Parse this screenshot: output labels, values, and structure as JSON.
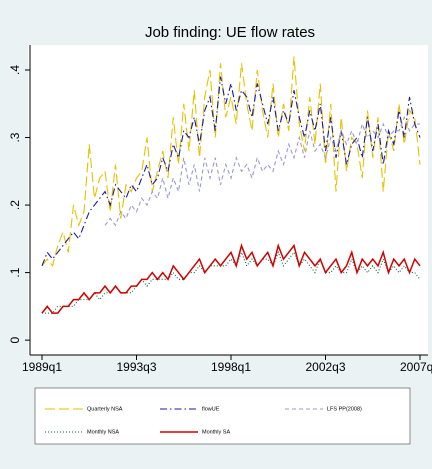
{
  "chart_data": {
    "type": "line",
    "title": "Job finding: UE flow rates",
    "categories": [
      "1989q1",
      null,
      null,
      null,
      null,
      null,
      null,
      null,
      null,
      null,
      null,
      null,
      null,
      null,
      null,
      null,
      null,
      null,
      "1993q3",
      null,
      null,
      null,
      null,
      null,
      null,
      null,
      null,
      null,
      null,
      null,
      null,
      null,
      null,
      null,
      null,
      null,
      "1998q1",
      null,
      null,
      null,
      null,
      null,
      null,
      null,
      null,
      null,
      null,
      null,
      null,
      null,
      null,
      null,
      null,
      null,
      "2002q3",
      null,
      null,
      null,
      null,
      null,
      null,
      null,
      null,
      null,
      null,
      null,
      null,
      null,
      null,
      null,
      null,
      null,
      "2007q1"
    ],
    "ylim": [
      -0.022,
      0.437
    ],
    "yticks": [
      0,
      {
        "value": 0.1,
        "label": ".1"
      },
      {
        "value": 0.2,
        "label": ".2"
      },
      {
        "value": 0.3,
        "label": ".3"
      },
      {
        "value": 0.4,
        "label": ".4"
      }
    ],
    "series": [
      {
        "name": "Quarterly NSA",
        "color": "#e6c200",
        "line_style": "longdash",
        "values": [
          0.11,
          0.12,
          0.11,
          0.14,
          0.16,
          0.13,
          0.2,
          0.17,
          0.19,
          0.29,
          0.21,
          0.24,
          0.25,
          0.19,
          0.26,
          0.18,
          0.23,
          0.22,
          0.24,
          0.25,
          0.3,
          0.22,
          0.25,
          0.28,
          0.24,
          0.33,
          0.26,
          0.35,
          0.28,
          0.37,
          0.27,
          0.36,
          0.4,
          0.3,
          0.41,
          0.33,
          0.36,
          0.32,
          0.41,
          0.35,
          0.31,
          0.4,
          0.34,
          0.3,
          0.38,
          0.3,
          0.35,
          0.31,
          0.42,
          0.32,
          0.28,
          0.36,
          0.29,
          0.38,
          0.26,
          0.35,
          0.22,
          0.33,
          0.25,
          0.3,
          0.29,
          0.24,
          0.34,
          0.27,
          0.33,
          0.22,
          0.31,
          0.28,
          0.35,
          0.29,
          0.34,
          0.33,
          0.26
        ]
      },
      {
        "name": "flowUE",
        "color": "#1a1a9e",
        "line_style": "dashdot",
        "values": [
          0.11,
          0.13,
          0.12,
          0.13,
          0.14,
          0.15,
          0.16,
          0.15,
          0.17,
          0.19,
          0.2,
          0.21,
          0.22,
          0.2,
          0.23,
          0.22,
          0.21,
          0.23,
          0.22,
          0.24,
          0.26,
          0.23,
          0.24,
          0.27,
          0.25,
          0.29,
          0.27,
          0.31,
          0.3,
          0.33,
          0.29,
          0.34,
          0.36,
          0.31,
          0.39,
          0.35,
          0.38,
          0.34,
          0.37,
          0.36,
          0.33,
          0.38,
          0.35,
          0.32,
          0.36,
          0.31,
          0.34,
          0.32,
          0.37,
          0.33,
          0.3,
          0.34,
          0.31,
          0.35,
          0.28,
          0.33,
          0.27,
          0.31,
          0.26,
          0.29,
          0.3,
          0.27,
          0.33,
          0.28,
          0.32,
          0.26,
          0.31,
          0.29,
          0.34,
          0.3,
          0.36,
          0.32,
          0.3
        ]
      },
      {
        "name": "LFS PP(2008)",
        "color": "#9a9ad0",
        "line_style": "shortdash",
        "values": [
          null,
          null,
          null,
          null,
          null,
          null,
          null,
          null,
          null,
          null,
          null,
          null,
          0.17,
          0.18,
          0.17,
          0.19,
          0.18,
          0.2,
          0.19,
          0.21,
          0.2,
          0.22,
          0.21,
          0.24,
          0.21,
          0.24,
          0.22,
          0.27,
          0.23,
          0.26,
          0.22,
          0.27,
          0.24,
          0.27,
          0.23,
          0.26,
          0.24,
          0.27,
          0.25,
          0.26,
          0.24,
          0.27,
          0.25,
          0.26,
          0.25,
          0.28,
          0.26,
          0.29,
          0.27,
          0.3,
          0.27,
          0.31,
          0.28,
          0.29,
          0.27,
          0.3,
          0.28,
          0.31,
          0.29,
          0.31,
          0.29,
          0.32,
          0.3,
          0.31,
          0.3,
          0.32,
          0.3,
          0.31,
          0.31,
          0.33,
          0.31,
          0.32,
          0.32
        ]
      },
      {
        "name": "Monthly NSA",
        "color": "#006644",
        "line_style": "dot",
        "values": [
          0.04,
          0.04,
          0.04,
          0.05,
          0.05,
          0.05,
          0.05,
          0.06,
          0.06,
          0.06,
          0.07,
          0.06,
          0.07,
          0.07,
          0.08,
          0.07,
          0.07,
          0.07,
          0.08,
          0.09,
          0.08,
          0.09,
          0.09,
          0.09,
          0.09,
          0.1,
          0.09,
          0.09,
          0.1,
          0.1,
          0.11,
          0.1,
          0.11,
          0.11,
          0.11,
          0.11,
          0.12,
          0.11,
          0.13,
          0.11,
          0.12,
          0.11,
          0.12,
          0.12,
          0.11,
          0.13,
          0.11,
          0.12,
          0.13,
          0.11,
          0.12,
          0.11,
          0.1,
          0.12,
          0.1,
          0.1,
          0.11,
          0.1,
          0.1,
          0.12,
          0.1,
          0.11,
          0.1,
          0.11,
          0.1,
          0.12,
          0.1,
          0.11,
          0.1,
          0.11,
          0.1,
          0.1,
          0.09
        ]
      },
      {
        "name": "Monthly SA",
        "color": "#d00000",
        "line_style": "solid",
        "values": [
          0.04,
          0.05,
          0.04,
          0.04,
          0.05,
          0.05,
          0.06,
          0.06,
          0.07,
          0.06,
          0.07,
          0.07,
          0.08,
          0.07,
          0.08,
          0.07,
          0.07,
          0.08,
          0.08,
          0.09,
          0.09,
          0.1,
          0.09,
          0.1,
          0.09,
          0.11,
          0.1,
          0.09,
          0.1,
          0.11,
          0.12,
          0.1,
          0.11,
          0.12,
          0.11,
          0.12,
          0.13,
          0.11,
          0.14,
          0.12,
          0.13,
          0.11,
          0.12,
          0.13,
          0.11,
          0.14,
          0.12,
          0.13,
          0.14,
          0.11,
          0.13,
          0.12,
          0.11,
          0.12,
          0.1,
          0.11,
          0.12,
          0.1,
          0.11,
          0.13,
          0.1,
          0.12,
          0.11,
          0.12,
          0.11,
          0.13,
          0.1,
          0.12,
          0.11,
          0.12,
          0.1,
          0.12,
          0.11
        ]
      }
    ]
  }
}
